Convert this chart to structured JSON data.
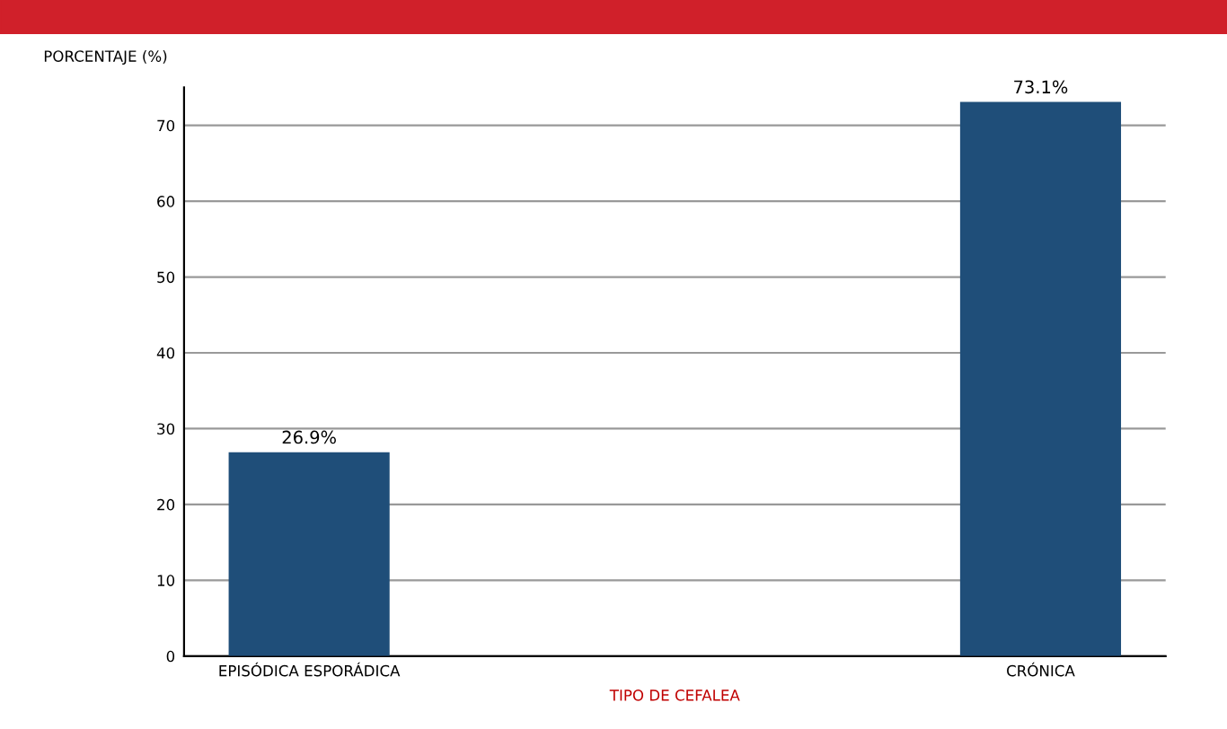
{
  "chart_data": {
    "type": "bar",
    "xlabel": "TIPO DE CEFALEA",
    "ylabel": "PORCENTAJE (%)",
    "categories": [
      "EPISÓDICA ESPORÁDICA",
      "CRÓNICA"
    ],
    "values": [
      26.9,
      73.1
    ],
    "value_labels": [
      "26.9%",
      "73.1%"
    ],
    "color": "#1f4e79",
    "ylim": [
      0,
      75
    ],
    "yticks": [
      0,
      10,
      20,
      30,
      40,
      50,
      60,
      70
    ],
    "grid": "y"
  }
}
